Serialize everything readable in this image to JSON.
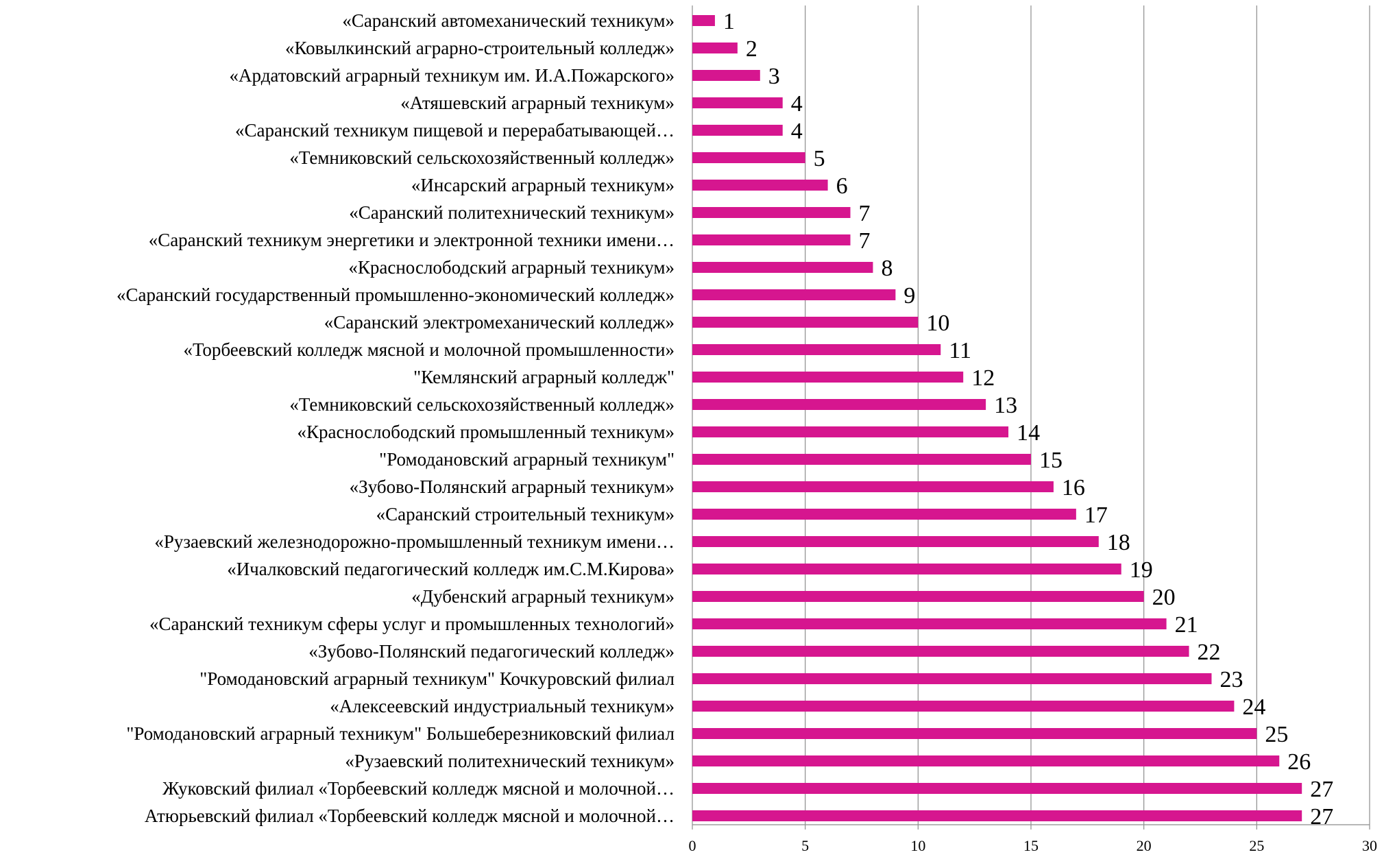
{
  "chart_data": {
    "type": "bar",
    "orientation": "horizontal",
    "title": "",
    "xlabel": "",
    "ylabel": "",
    "xlim": [
      0,
      30
    ],
    "x_ticks": [
      0,
      5,
      10,
      15,
      20,
      25,
      30
    ],
    "grid": "vertical",
    "legend": "none",
    "bar_color": "#d6168f",
    "categories": [
      "«Саранский автомеханический техникум»",
      "«Ковылкинский аграрно-строительный колледж»",
      "«Ардатовский аграрный техникум им. И.А.Пожарского»",
      "«Атяшевский аграрный техникум»",
      "«Саранский техникум пищевой и перерабатывающей…",
      "«Темниковский сельскохозяйственный колледж»",
      "«Инсарский аграрный техникум»",
      "«Саранский политехнический техникум»",
      "«Саранский техникум энергетики и электронной техники имени…",
      "«Краснослободский аграрный техникум»",
      "«Саранский государственный промышленно-экономический колледж»",
      "«Саранский электромеханический колледж»",
      "«Торбеевский колледж мясной и молочной промышленности»",
      "\"Кемлянский аграрный колледж\"",
      "«Темниковский сельскохозяйственный колледж»",
      "«Краснослободский промышленный техникум»",
      "\"Ромодановский аграрный техникум\"",
      "«Зубово-Полянский аграрный техникум»",
      "«Саранский строительный техникум»",
      "«Рузаевский железнодорожно-промышленный техникум имени…",
      "«Ичалковский педагогический колледж им.С.М.Кирова»",
      "«Дубенский аграрный техникум»",
      "«Саранский техникум сферы услуг и промышленных технологий»",
      "«Зубово-Полянский педагогический колледж»",
      "\"Ромодановский аграрный техникум\" Кочкуровский филиал",
      "«Алексеевский индустриальный техникум»",
      "\"Ромодановский аграрный техникум\" Большеберезниковский филиал",
      "«Рузаевский политехнический техникум»",
      "Жуковский филиал «Торбеевский колледж мясной и молочной…",
      "Атюрьевский филиал «Торбеевский колледж мясной и молочной…"
    ],
    "values": [
      1,
      2,
      3,
      4,
      4,
      5,
      6,
      7,
      7,
      8,
      9,
      10,
      11,
      12,
      13,
      14,
      15,
      16,
      17,
      18,
      19,
      20,
      21,
      22,
      23,
      24,
      25,
      26,
      27,
      27
    ]
  }
}
